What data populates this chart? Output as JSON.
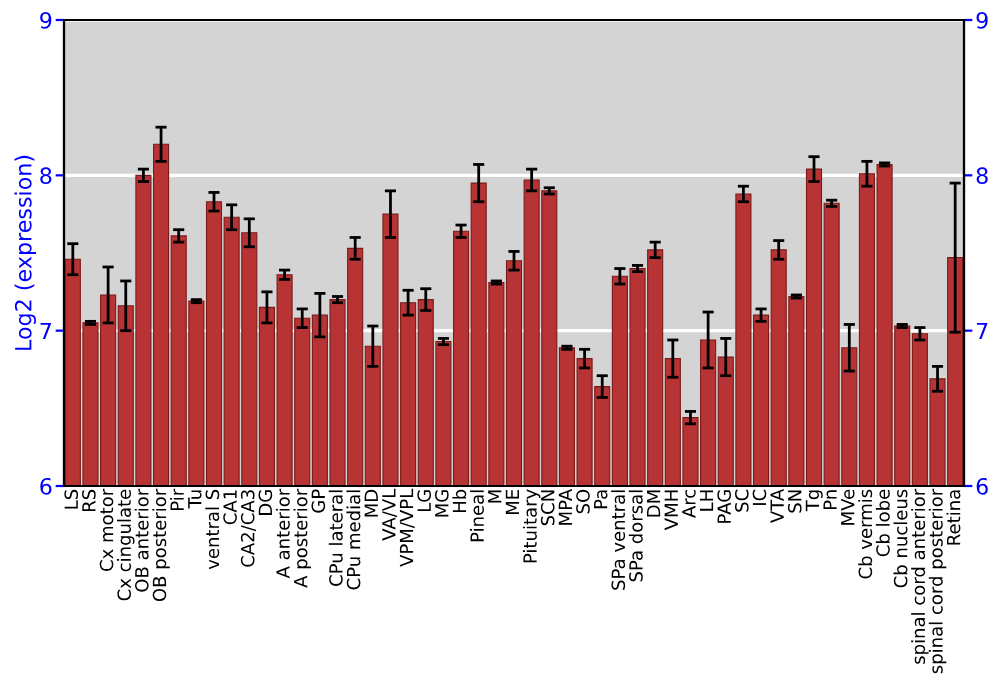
{
  "chart_data": {
    "type": "bar",
    "ylabel": "Log2 (expression)",
    "categories": [
      "LS",
      "RS",
      "Cx motor",
      "Cx cingulate",
      "OB anterior",
      "OB posterior",
      "Pir",
      "Tu",
      "ventral S",
      "CA1",
      "CA2/CA3",
      "DG",
      "A anterior",
      "A posterior",
      "GP",
      "CPu lateral",
      "CPu medial",
      "MD",
      "VA/VL",
      "VPM/VPL",
      "LG",
      "MG",
      "Hb",
      "Pineal",
      "M",
      "ME",
      "Pituitary",
      "SCN",
      "MPA",
      "SO",
      "Pa",
      "SPa ventral",
      "SPa dorsal",
      "DM",
      "VMH",
      "Arc",
      "LH",
      "PAG",
      "SC",
      "IC",
      "VTA",
      "SN",
      "Tg",
      "Pn",
      "MVe",
      "Cb vermis",
      "Cb lobe",
      "Cb nucleus",
      "spinal cord anterior",
      "spinal cord posterior",
      "Retina"
    ],
    "values": [
      7.46,
      7.05,
      7.23,
      7.16,
      8.0,
      8.2,
      7.61,
      7.19,
      7.83,
      7.73,
      7.63,
      7.15,
      7.36,
      7.08,
      7.1,
      7.2,
      7.53,
      6.9,
      7.75,
      7.18,
      7.2,
      6.93,
      7.64,
      7.95,
      7.31,
      7.45,
      7.97,
      7.9,
      6.89,
      6.82,
      6.64,
      7.35,
      7.4,
      7.52,
      6.82,
      6.44,
      6.94,
      6.83,
      7.88,
      7.1,
      7.52,
      7.22,
      8.04,
      7.82,
      6.89,
      8.01,
      8.07,
      7.03,
      6.98,
      6.69,
      7.47
    ],
    "errors": [
      0.1,
      0.01,
      0.18,
      0.16,
      0.04,
      0.11,
      0.04,
      0.01,
      0.06,
      0.08,
      0.09,
      0.1,
      0.03,
      0.06,
      0.14,
      0.02,
      0.07,
      0.13,
      0.15,
      0.08,
      0.07,
      0.02,
      0.04,
      0.12,
      0.01,
      0.06,
      0.07,
      0.02,
      0.01,
      0.06,
      0.07,
      0.05,
      0.02,
      0.05,
      0.12,
      0.04,
      0.18,
      0.12,
      0.05,
      0.04,
      0.06,
      0.01,
      0.08,
      0.02,
      0.15,
      0.08,
      0.01,
      0.01,
      0.04,
      0.08,
      0.48
    ],
    "color": "#b83434",
    "ylim": [
      6,
      9
    ],
    "yticks": [
      6,
      7,
      8,
      9
    ],
    "y2lim": [
      6,
      9
    ],
    "y2ticks": [
      6,
      7,
      8,
      9
    ],
    "grid": "y"
  }
}
